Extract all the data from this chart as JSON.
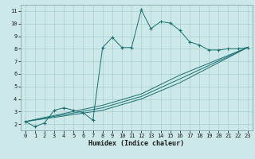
{
  "xlabel": "Humidex (Indice chaleur)",
  "bg_color": "#cce8e8",
  "grid_color": "#aacfcf",
  "line_color": "#1a7070",
  "xlim": [
    -0.5,
    23.5
  ],
  "ylim": [
    1.5,
    11.5
  ],
  "xticks": [
    0,
    1,
    2,
    3,
    4,
    5,
    6,
    7,
    8,
    9,
    10,
    11,
    12,
    13,
    14,
    15,
    16,
    17,
    18,
    19,
    20,
    21,
    22,
    23
  ],
  "yticks": [
    2,
    3,
    4,
    5,
    6,
    7,
    8,
    9,
    10,
    11
  ],
  "line1_x": [
    0,
    1,
    2,
    3,
    4,
    5,
    6,
    7,
    8,
    9,
    10,
    11,
    12,
    13,
    14,
    15,
    16,
    17,
    18,
    19,
    20,
    21,
    22,
    23
  ],
  "line1_y": [
    2.2,
    1.8,
    2.1,
    3.1,
    3.3,
    3.1,
    2.9,
    2.3,
    8.1,
    8.9,
    8.1,
    8.1,
    11.1,
    9.6,
    10.15,
    10.05,
    9.45,
    8.55,
    8.3,
    7.9,
    7.9,
    8.0,
    8.0,
    8.1
  ],
  "line2_x": [
    0,
    23
  ],
  "line2_y": [
    2.2,
    8.1
  ],
  "line3_x": [
    0,
    23
  ],
  "line3_y": [
    2.2,
    8.1
  ],
  "line4_x": [
    0,
    23
  ],
  "line4_y": [
    2.2,
    8.1
  ],
  "line2_via_x": [
    0,
    8,
    12,
    16,
    23
  ],
  "line2_via_y": [
    2.2,
    3.3,
    4.2,
    5.6,
    8.1
  ],
  "line3_via_x": [
    0,
    8,
    12,
    16,
    23
  ],
  "line3_via_y": [
    2.2,
    3.5,
    4.4,
    5.9,
    8.1
  ],
  "line4_via_x": [
    0,
    8,
    12,
    16,
    23
  ],
  "line4_via_y": [
    2.2,
    3.1,
    4.0,
    5.3,
    8.1
  ]
}
